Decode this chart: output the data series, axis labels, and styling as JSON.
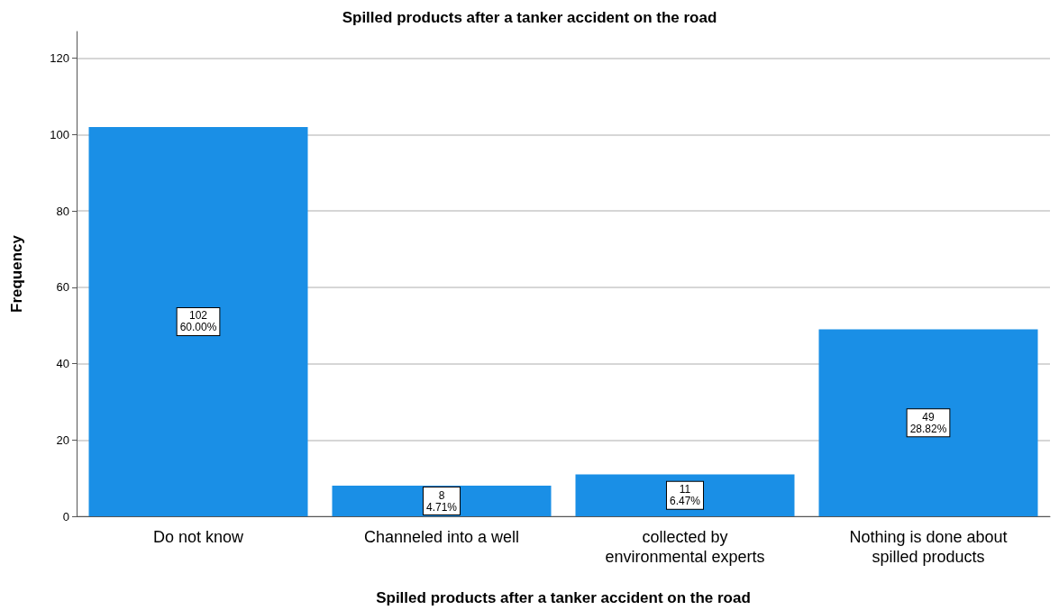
{
  "chart_data": {
    "type": "bar",
    "title": "Spilled products after a tanker accident on the road",
    "xlabel": "Spilled products after a tanker accident on the road",
    "ylabel": "Frequency",
    "categories": [
      "Do not know",
      "Channeled into a well",
      "collected by\nenvironmental experts",
      "Nothing is done about\nspilled products"
    ],
    "values": [
      102,
      8,
      11,
      49
    ],
    "value_labels": [
      "102\n60.00%",
      "8\n4.71%",
      "11\n6.47%",
      "49\n28.82%"
    ],
    "color": "#1a8fe6",
    "ylim": [
      0,
      127
    ],
    "yticks": [
      0,
      20,
      40,
      60,
      80,
      100,
      120
    ],
    "grid": "y"
  }
}
